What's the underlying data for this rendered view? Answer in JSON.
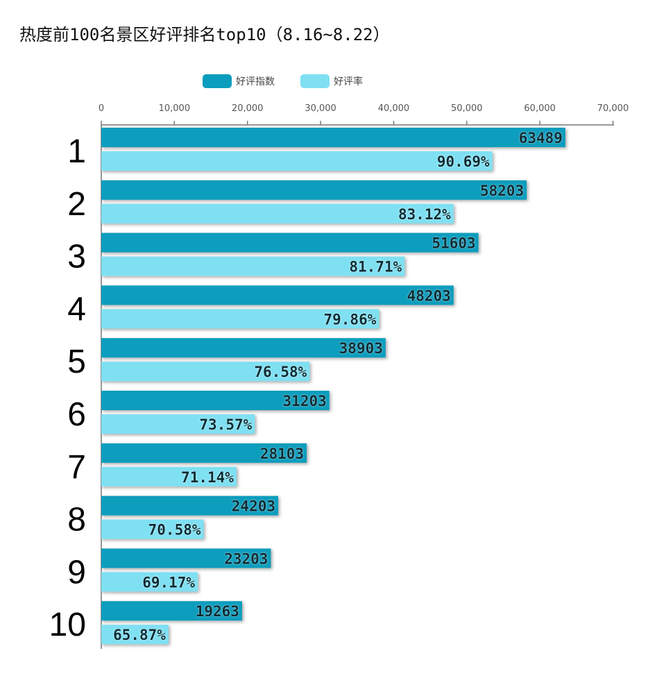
{
  "title": "热度前100名景区好评排名top10（8.16~8.22）",
  "colors": {
    "series1": "#0a9dbd",
    "series2": "#7fe0f2"
  },
  "chart_data": {
    "type": "bar",
    "orientation": "horizontal",
    "title": "热度前100名景区好评排名top10（8.16~8.22）",
    "categories": [
      "1",
      "2",
      "3",
      "4",
      "5",
      "6",
      "7",
      "8",
      "9",
      "10"
    ],
    "xlim": [
      0,
      70000
    ],
    "x_ticks": [
      "0",
      "10,000",
      "20,000",
      "30,000",
      "40,000",
      "50,000",
      "60,000",
      "70,000"
    ],
    "legend_position": "top-center",
    "grid": false,
    "series": [
      {
        "name": "好评指数",
        "values": [
          63489,
          58203,
          51603,
          48203,
          38903,
          31203,
          28103,
          24203,
          23203,
          19263
        ],
        "labels": [
          "63489",
          "58203",
          "51603",
          "48203",
          "38903",
          "31203",
          "28103",
          "24203",
          "23203",
          "19263"
        ]
      },
      {
        "name": "好评率",
        "values": [
          90.69,
          83.12,
          81.71,
          79.86,
          76.58,
          73.57,
          71.14,
          70.58,
          69.17,
          65.87
        ],
        "labels": [
          "90.69%",
          "83.12%",
          "81.71%",
          "79.86%",
          "76.58%",
          "73.57%",
          "71.14%",
          "70.58%",
          "69.17%",
          "65.87%"
        ],
        "bar_extent": [
          53500,
          48200,
          41500,
          38000,
          28500,
          21000,
          18500,
          14000,
          13200,
          9200
        ]
      }
    ]
  }
}
